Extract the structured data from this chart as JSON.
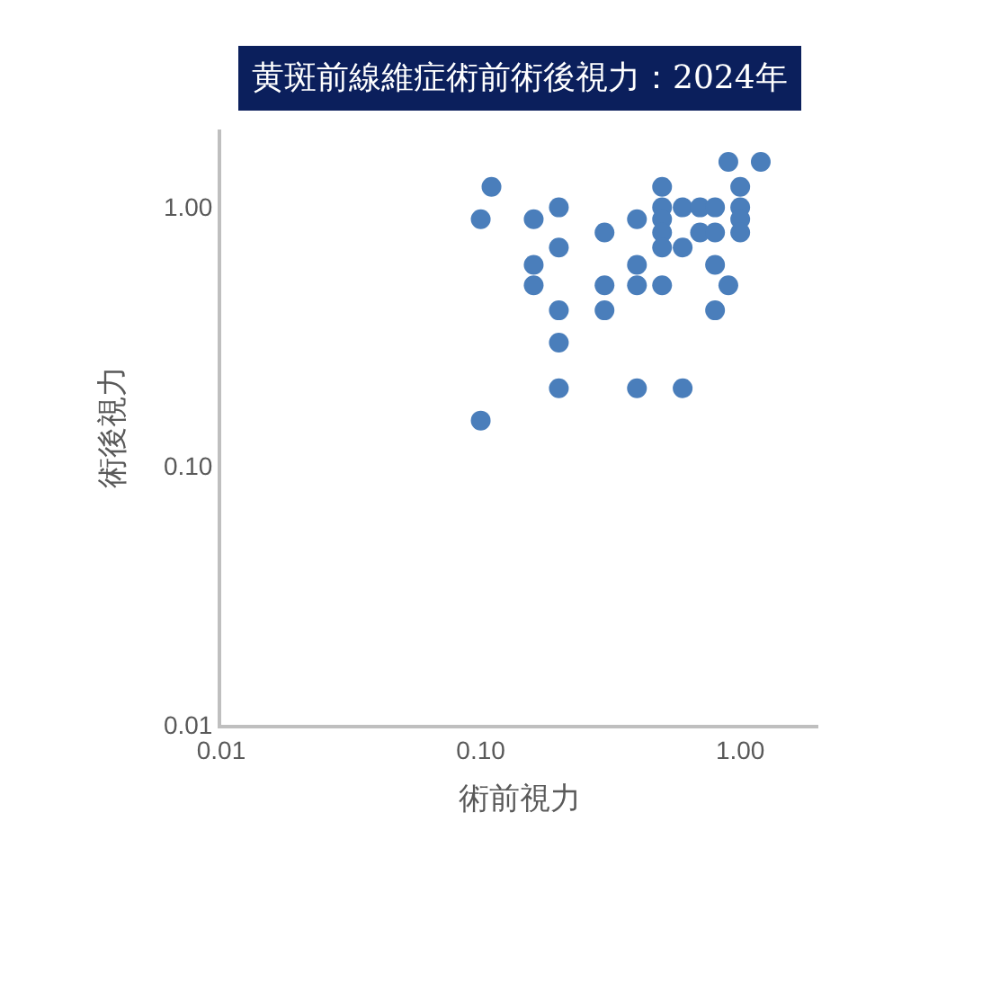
{
  "chart_data": {
    "type": "scatter",
    "title": "黄斑前線維症術前術後視力：2024年",
    "xlabel": "術前視力",
    "ylabel": "術後視力",
    "log": "xy",
    "grid": false,
    "marker": "circle",
    "xlim": [
      0.01,
      2
    ],
    "ylim": [
      0.01,
      2
    ],
    "xticks": [
      {
        "value": 0.01,
        "label": "0.01"
      },
      {
        "value": 0.1,
        "label": "0.10"
      },
      {
        "value": 1,
        "label": "1.00"
      }
    ],
    "yticks": [
      {
        "value": 0.01,
        "label": "0.01"
      },
      {
        "value": 0.1,
        "label": "0.10"
      },
      {
        "value": 1,
        "label": "1.00"
      }
    ],
    "series": [
      {
        "color": "#4a7ebb",
        "x": [
          0.11,
          0.1,
          0.16,
          0.2,
          0.3,
          0.4,
          0.5,
          0.5,
          0.5,
          0.5,
          0.5,
          0.6,
          0.6,
          0.7,
          0.7,
          0.8,
          0.8,
          1.0,
          1.0,
          1.0,
          1.0,
          0.9,
          1.2,
          0.16,
          0.16,
          0.2,
          0.4,
          0.3,
          0.3,
          0.4,
          0.5,
          0.8,
          0.9,
          0.8,
          0.2,
          0.2,
          0.2,
          0.4,
          0.6,
          0.1
        ],
        "values": [
          1.2,
          0.9,
          0.9,
          1.0,
          0.8,
          0.9,
          1.2,
          1.0,
          0.9,
          0.8,
          0.7,
          1.0,
          0.7,
          1.0,
          0.8,
          1.0,
          0.8,
          1.2,
          1.0,
          0.9,
          0.8,
          1.5,
          1.5,
          0.6,
          0.5,
          0.7,
          0.6,
          0.5,
          0.4,
          0.5,
          0.5,
          0.6,
          0.5,
          0.4,
          0.4,
          0.3,
          0.2,
          0.2,
          0.2,
          0.15
        ]
      }
    ]
  }
}
